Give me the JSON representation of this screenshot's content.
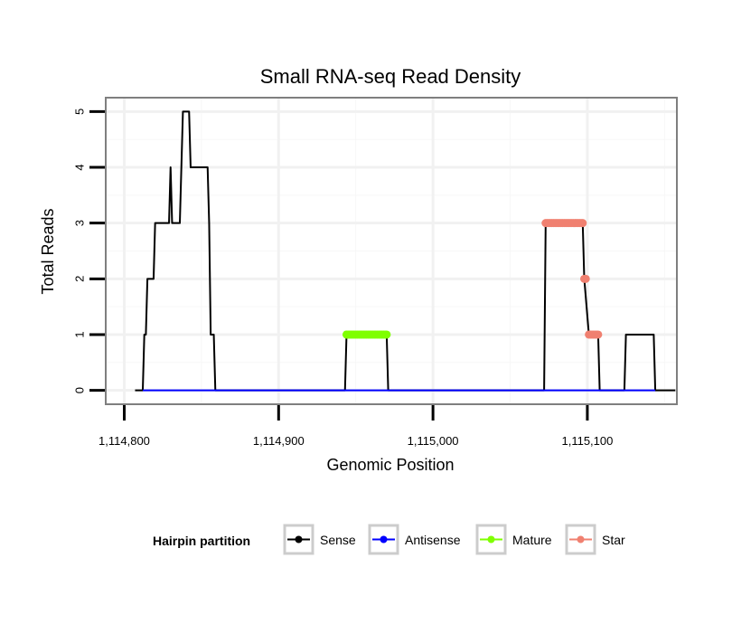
{
  "chart_data": {
    "type": "line",
    "title": "Small RNA-seq Read Density",
    "xlabel": "Genomic Position",
    "ylabel": "Total Reads",
    "xlim": [
      1114788,
      1115158
    ],
    "ylim": [
      -0.25,
      5.25
    ],
    "x_ticks": [
      1114800,
      1114900,
      1115000,
      1115100
    ],
    "x_tick_labels": [
      "1,114,800",
      "1,114,900",
      "1,115,000",
      "1,115,100"
    ],
    "y_ticks": [
      0,
      1,
      2,
      3,
      4,
      5
    ],
    "y_tick_labels": [
      "0",
      "1",
      "2",
      "3",
      "4",
      "5"
    ],
    "grid": true,
    "legend_title": "Hairpin partition",
    "legend_position": "bottom",
    "series": [
      {
        "name": "Sense",
        "color": "#000000",
        "kind": "step-line",
        "points": [
          [
            1114807,
            0
          ],
          [
            1114812,
            0
          ],
          [
            1114813,
            1
          ],
          [
            1114814,
            1
          ],
          [
            1114815,
            2
          ],
          [
            1114819,
            2
          ],
          [
            1114820,
            3
          ],
          [
            1114829,
            3
          ],
          [
            1114830,
            4
          ],
          [
            1114831,
            3
          ],
          [
            1114836,
            3
          ],
          [
            1114838,
            5
          ],
          [
            1114842,
            5
          ],
          [
            1114843,
            4
          ],
          [
            1114854,
            4
          ],
          [
            1114855,
            3
          ],
          [
            1114856,
            1
          ],
          [
            1114858,
            1
          ],
          [
            1114859,
            0
          ],
          [
            1114943,
            0
          ],
          [
            1114944,
            1
          ],
          [
            1114970,
            1
          ],
          [
            1114971,
            0
          ],
          [
            1115072,
            0
          ],
          [
            1115073,
            3
          ],
          [
            1115097,
            3
          ],
          [
            1115098,
            2
          ],
          [
            1115101,
            1
          ],
          [
            1115107,
            1
          ],
          [
            1115108,
            0
          ],
          [
            1115124,
            0
          ],
          [
            1115125,
            1
          ],
          [
            1115143,
            1
          ],
          [
            1115144,
            0
          ],
          [
            1115157,
            0
          ]
        ]
      },
      {
        "name": "Antisense",
        "color": "#0000ff",
        "kind": "line",
        "points": [
          [
            1114812,
            0
          ],
          [
            1114859,
            0
          ],
          [
            1114944,
            0
          ],
          [
            1114971,
            0
          ],
          [
            1115073,
            0
          ],
          [
            1115108,
            0
          ],
          [
            1115125,
            0
          ],
          [
            1115144,
            0
          ]
        ]
      },
      {
        "name": "Mature",
        "color": "#7fff00",
        "kind": "dots",
        "x_from": 1114944,
        "x_to": 1114970,
        "y": 1
      },
      {
        "name": "Star",
        "color": "#f08070",
        "kind": "dots",
        "segments": [
          {
            "x_from": 1115073,
            "x_to": 1115097,
            "y": 3
          },
          {
            "x_from": 1115098,
            "x_to": 1115099,
            "y": 2
          },
          {
            "x_from": 1115101,
            "x_to": 1115107,
            "y": 1
          }
        ]
      }
    ]
  }
}
